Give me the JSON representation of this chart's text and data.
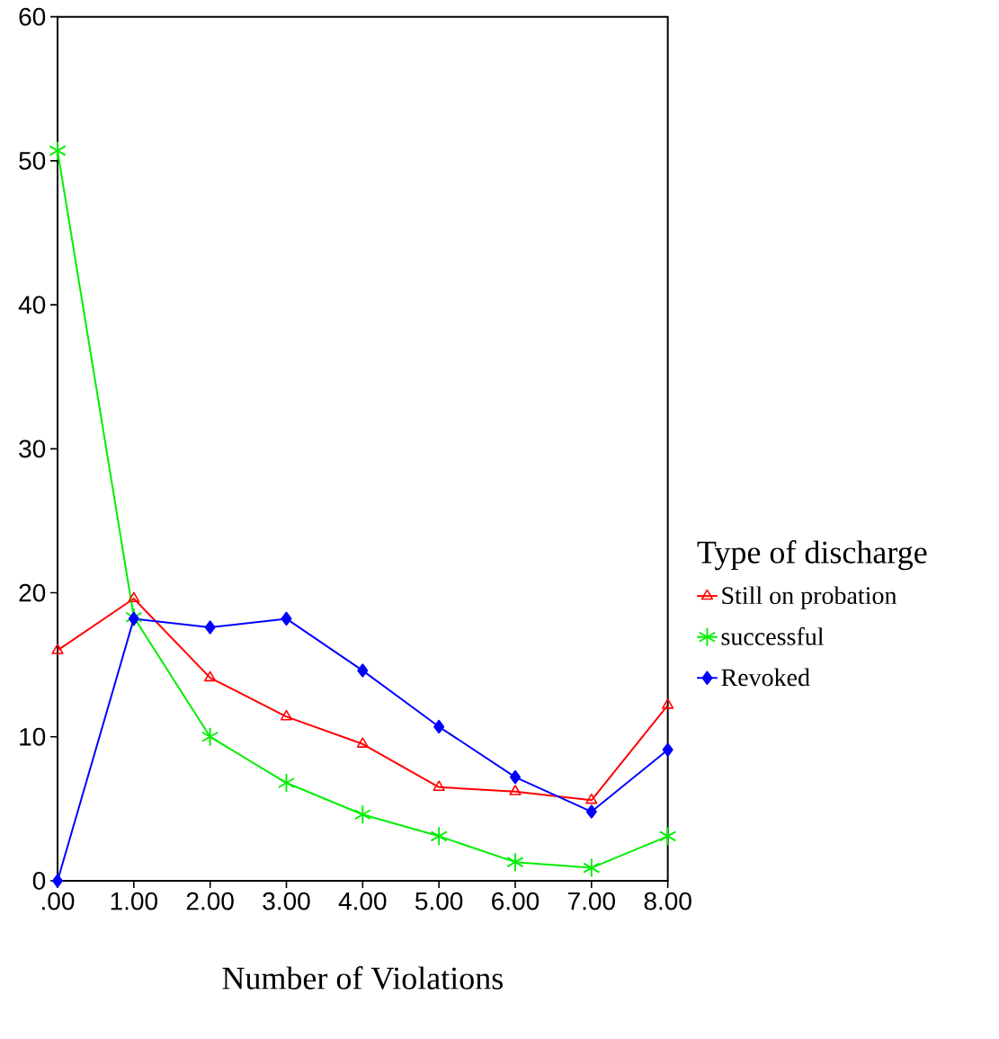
{
  "chart_data": {
    "type": "line",
    "xlabel": "Number of Violations",
    "legend_title": "Type of discharge",
    "legend": "right",
    "grid": false,
    "x": [
      0,
      1,
      2,
      3,
      4,
      5,
      6,
      7,
      8
    ],
    "xlim": [
      0,
      8
    ],
    "xticks": [
      {
        "value": 0,
        "label": ".00"
      },
      {
        "value": 1,
        "label": "1.00"
      },
      {
        "value": 2,
        "label": "2.00"
      },
      {
        "value": 3,
        "label": "3.00"
      },
      {
        "value": 4,
        "label": "4.00"
      },
      {
        "value": 5,
        "label": "5.00"
      },
      {
        "value": 6,
        "label": "6.00"
      },
      {
        "value": 7,
        "label": "7.00"
      },
      {
        "value": 8,
        "label": "8.00"
      }
    ],
    "ylim": [
      0,
      60
    ],
    "yticks": [
      0,
      10,
      20,
      30,
      40,
      50,
      60
    ],
    "series": [
      {
        "name": "Still on probation",
        "color": "#ff0000",
        "marker": "triangle",
        "values": [
          16.0,
          19.6,
          14.1,
          11.4,
          9.5,
          6.5,
          6.2,
          5.6,
          12.2
        ]
      },
      {
        "name": "successful",
        "color": "#00ee00",
        "marker": "cross",
        "values": [
          50.7,
          18.3,
          10.0,
          6.8,
          4.6,
          3.1,
          1.3,
          0.9,
          3.1
        ]
      },
      {
        "name": "Revoked",
        "color": "#0000ff",
        "marker": "diamond",
        "values": [
          0,
          18.2,
          17.6,
          18.2,
          14.6,
          10.7,
          7.2,
          4.8,
          9.1
        ]
      }
    ]
  }
}
